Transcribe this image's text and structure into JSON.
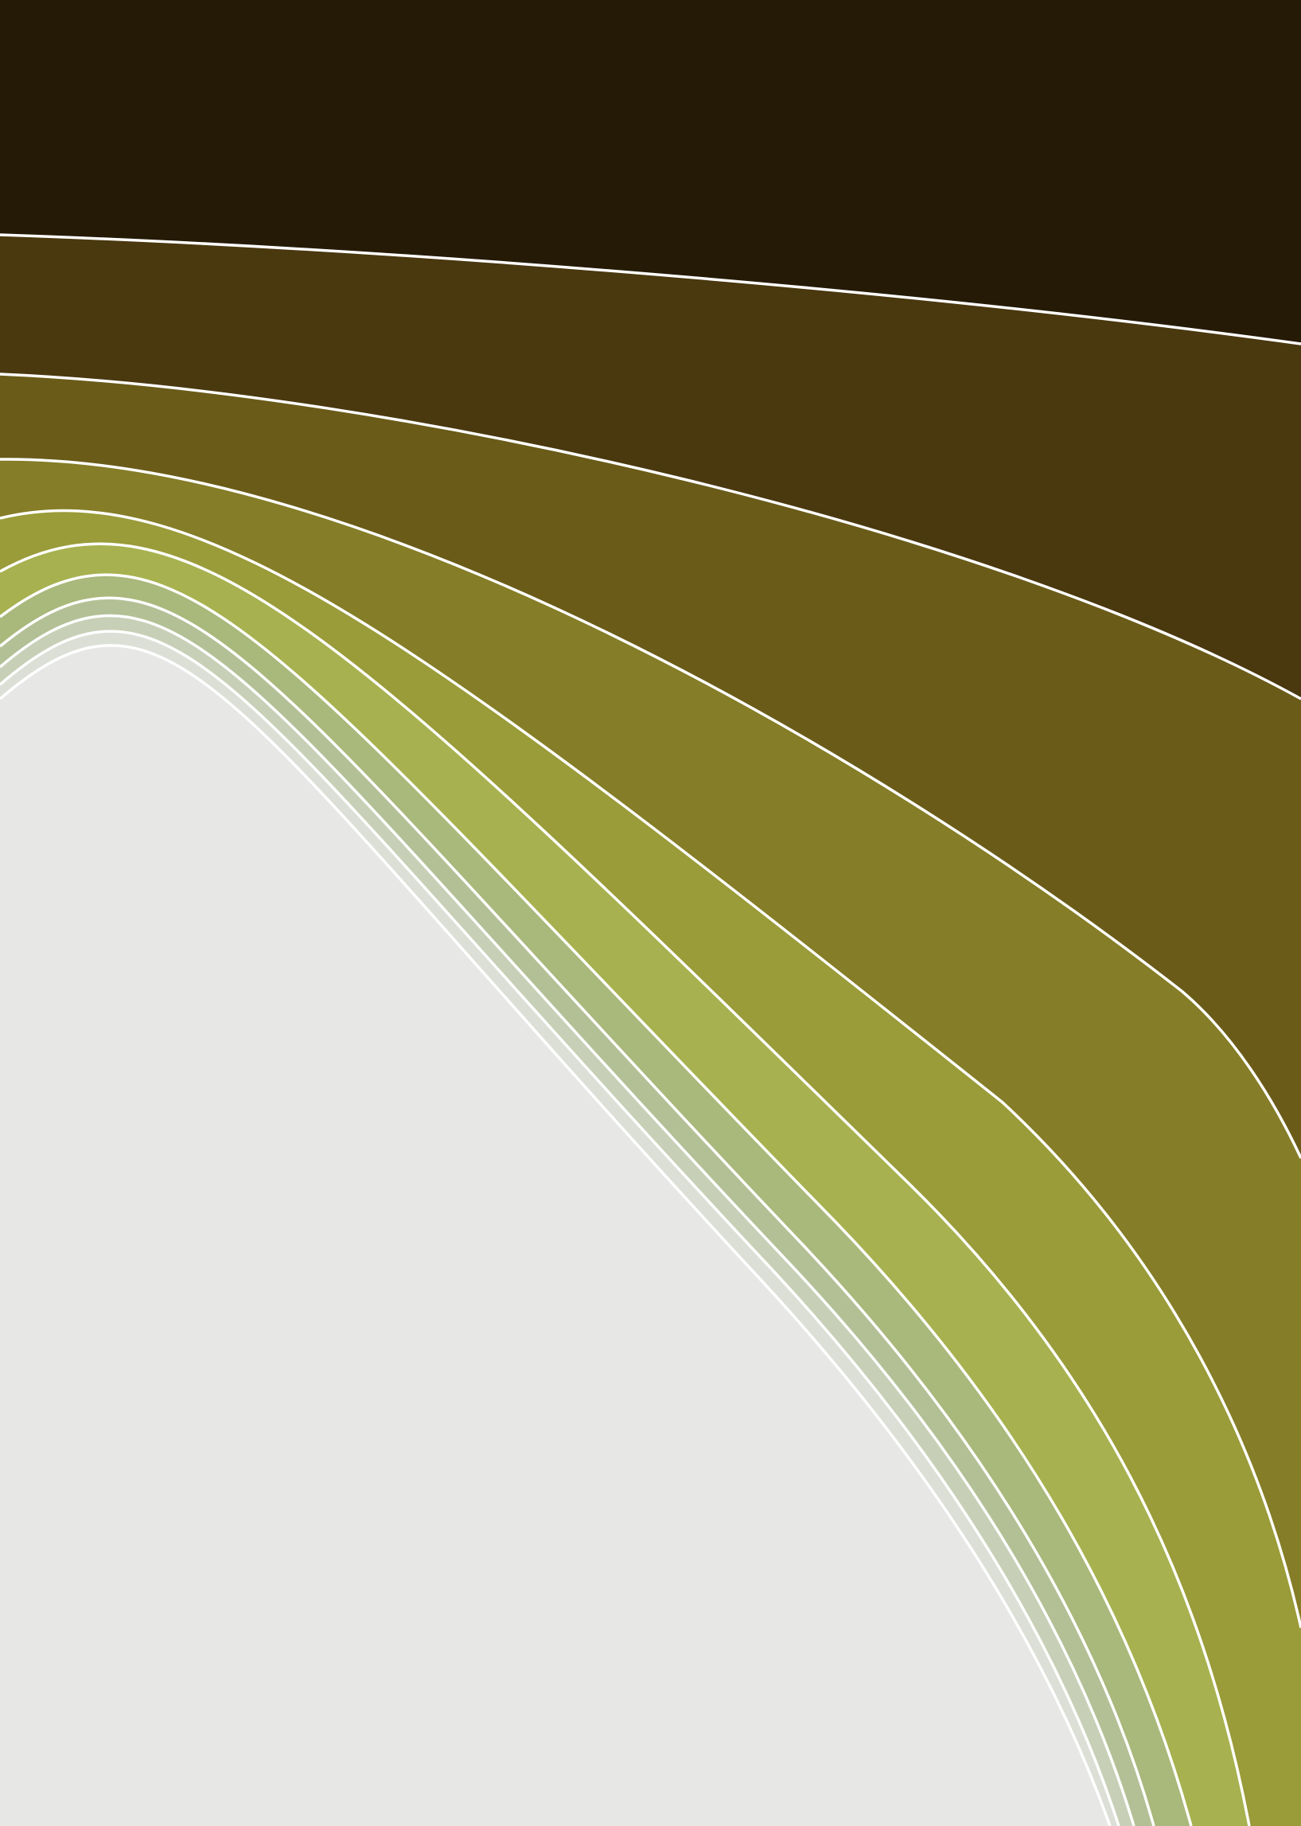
{
  "artwork": {
    "description_type": "abstract-wave-bands",
    "colors": {
      "band_1": "#251a06",
      "band_2": "#4a380f",
      "band_3": "#6a5b19",
      "band_4": "#857d27",
      "band_5": "#9a9b39",
      "band_6": "#a7b14f",
      "band_7": "#a9b87b",
      "band_8": "#b3c096",
      "band_9": "#c7cfb6",
      "band_10": "#dcdfd6",
      "background": "#e7e7e5",
      "separator_line": "#ffffff"
    }
  }
}
